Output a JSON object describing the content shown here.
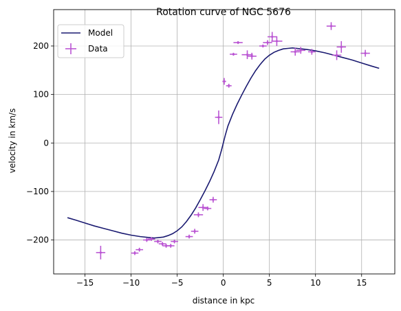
{
  "chart_data": {
    "type": "scatter",
    "title": "Rotation curve of NGC 5676",
    "xlabel": "distance in kpc",
    "ylabel": "velocity in km/s",
    "xlim": [
      -18.4,
      18.6
    ],
    "ylim": [
      -270,
      275
    ],
    "xticks": [
      -15,
      -10,
      -5,
      0,
      5,
      10,
      15
    ],
    "xtick_labels": [
      "−15",
      "−10",
      "−5",
      "0",
      "5",
      "10",
      "15"
    ],
    "yticks": [
      -200,
      -100,
      0,
      100,
      200
    ],
    "ytick_labels": [
      "−200",
      "−100",
      "0",
      "100",
      "200"
    ],
    "grid": true,
    "legend_position": "upper-left",
    "legend": [
      {
        "label": "Model",
        "kind": "line"
      },
      {
        "label": "Data",
        "kind": "errorbar"
      }
    ],
    "colors": {
      "model": "#191970",
      "data": "#ba55d3",
      "grid": "#b0b0b0"
    },
    "series": [
      {
        "name": "Model",
        "kind": "line",
        "x": [
          -16.9,
          -16,
          -15,
          -14,
          -13,
          -12,
          -11,
          -10,
          -9,
          -8,
          -7.5,
          -7,
          -6.5,
          -6,
          -5.5,
          -5,
          -4.5,
          -4,
          -3.5,
          -3,
          -2.5,
          -2,
          -1.5,
          -1,
          -0.5,
          -0.2,
          0,
          0.2,
          0.5,
          1,
          1.5,
          2,
          2.5,
          3,
          3.5,
          4,
          4.5,
          5,
          5.5,
          6,
          6.5,
          7,
          7.5,
          8,
          9,
          10,
          11,
          12,
          13,
          14,
          15,
          16,
          16.9
        ],
        "y": [
          -154,
          -159,
          -165,
          -171,
          -176,
          -181,
          -186,
          -190,
          -193,
          -195,
          -196,
          -195,
          -194,
          -191,
          -187,
          -181,
          -173,
          -162,
          -149,
          -134,
          -117,
          -99,
          -80,
          -59,
          -35,
          -15,
          0,
          15,
          35,
          59,
          80,
          99,
          117,
          134,
          149,
          162,
          173,
          181,
          187,
          191,
          194,
          195,
          196,
          195,
          193,
          190,
          186,
          181,
          176,
          171,
          165,
          159,
          154
        ]
      },
      {
        "name": "Data",
        "kind": "errorbar",
        "points": [
          {
            "x": -13.3,
            "y": -226,
            "xerr": 0.5,
            "yerr": 14
          },
          {
            "x": -9.6,
            "y": -227,
            "xerr": 0.4,
            "yerr": 4
          },
          {
            "x": -9.1,
            "y": -220,
            "xerr": 0.4,
            "yerr": 4
          },
          {
            "x": -8.3,
            "y": -200,
            "xerr": 0.4,
            "yerr": 4
          },
          {
            "x": -7.8,
            "y": -198,
            "xerr": 0.4,
            "yerr": 4
          },
          {
            "x": -7.1,
            "y": -203,
            "xerr": 0.4,
            "yerr": 4
          },
          {
            "x": -6.6,
            "y": -208,
            "xerr": 0.4,
            "yerr": 4
          },
          {
            "x": -6.2,
            "y": -212,
            "xerr": 0.4,
            "yerr": 4
          },
          {
            "x": -5.7,
            "y": -212,
            "xerr": 0.4,
            "yerr": 4
          },
          {
            "x": -5.3,
            "y": -203,
            "xerr": 0.4,
            "yerr": 4
          },
          {
            "x": -3.7,
            "y": -193,
            "xerr": 0.4,
            "yerr": 4
          },
          {
            "x": -3.1,
            "y": -182,
            "xerr": 0.4,
            "yerr": 5
          },
          {
            "x": -2.7,
            "y": -148,
            "xerr": 0.5,
            "yerr": 5
          },
          {
            "x": -2.2,
            "y": -133,
            "xerr": 0.5,
            "yerr": 7
          },
          {
            "x": -1.7,
            "y": -135,
            "xerr": 0.4,
            "yerr": 4
          },
          {
            "x": -1.1,
            "y": -117,
            "xerr": 0.4,
            "yerr": 6
          },
          {
            "x": -0.5,
            "y": 53,
            "xerr": 0.4,
            "yerr": 14
          },
          {
            "x": 0.1,
            "y": 127,
            "xerr": 0.2,
            "yerr": 7
          },
          {
            "x": 0.6,
            "y": 118,
            "xerr": 0.3,
            "yerr": 4
          },
          {
            "x": 1.1,
            "y": 183,
            "xerr": 0.4,
            "yerr": 3
          },
          {
            "x": 1.6,
            "y": 207,
            "xerr": 0.5,
            "yerr": 3
          },
          {
            "x": 2.6,
            "y": 182,
            "xerr": 0.6,
            "yerr": 9
          },
          {
            "x": 3.1,
            "y": 179,
            "xerr": 0.5,
            "yerr": 7
          },
          {
            "x": 4.3,
            "y": 200,
            "xerr": 0.4,
            "yerr": 3
          },
          {
            "x": 4.8,
            "y": 207,
            "xerr": 0.5,
            "yerr": 5
          },
          {
            "x": 5.3,
            "y": 219,
            "xerr": 0.5,
            "yerr": 10
          },
          {
            "x": 5.8,
            "y": 210,
            "xerr": 0.6,
            "yerr": 10
          },
          {
            "x": 7.8,
            "y": 188,
            "xerr": 0.5,
            "yerr": 8
          },
          {
            "x": 8.4,
            "y": 191,
            "xerr": 0.5,
            "yerr": 7
          },
          {
            "x": 9.6,
            "y": 188,
            "xerr": 0.4,
            "yerr": 6
          },
          {
            "x": 11.7,
            "y": 241,
            "xerr": 0.5,
            "yerr": 8
          },
          {
            "x": 12.3,
            "y": 181,
            "xerr": 0.5,
            "yerr": 10
          },
          {
            "x": 12.8,
            "y": 198,
            "xerr": 0.5,
            "yerr": 12
          },
          {
            "x": 15.4,
            "y": 185,
            "xerr": 0.5,
            "yerr": 7
          }
        ]
      }
    ]
  }
}
